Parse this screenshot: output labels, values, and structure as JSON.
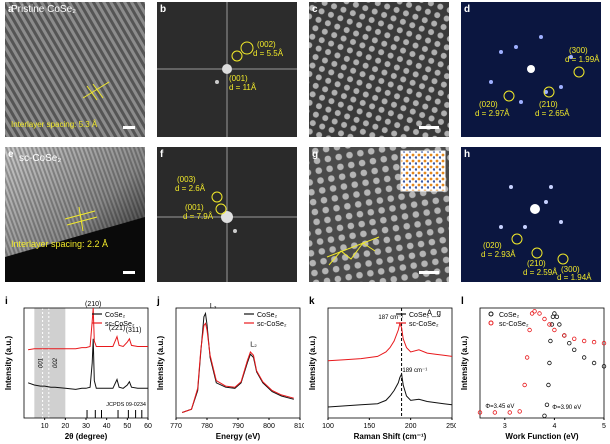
{
  "panels": {
    "a": {
      "label": "a",
      "title": "Pristine CoSe₂",
      "caption": "Interlayer spacing: 5.3 Å"
    },
    "b": {
      "label": "b",
      "spots": [
        {
          "hkl": "(002)",
          "d": "d = 5.5Å"
        },
        {
          "hkl": "(001)",
          "d": "d = 11Å"
        }
      ]
    },
    "c": {
      "label": "c"
    },
    "d": {
      "label": "d",
      "spots": [
        {
          "hkl": "(300)",
          "d": "d = 1.99Å"
        },
        {
          "hkl": "(020)",
          "d": "d = 2.97Å"
        },
        {
          "hkl": "(210)",
          "d": "d = 2.65Å"
        }
      ]
    },
    "e": {
      "label": "e",
      "title": "sc-CoSe₂",
      "caption": "Interlayer spacing: 2.2 Å"
    },
    "f": {
      "label": "f",
      "spots": [
        {
          "hkl": "(003)",
          "d": "d = 2.6Å"
        },
        {
          "hkl": "(001)",
          "d": "d = 7.9Å"
        }
      ]
    },
    "g": {
      "label": "g"
    },
    "h": {
      "label": "h",
      "spots": [
        {
          "hkl": "(020)",
          "d": "d = 2.93Å"
        },
        {
          "hkl": "(210)",
          "d": "d = 2.59Å"
        },
        {
          "hkl": "(300)",
          "d": "d = 1.94Å"
        }
      ]
    },
    "i": {
      "label": "i"
    },
    "j": {
      "label": "j"
    },
    "k": {
      "label": "k"
    },
    "l": {
      "label": "l"
    }
  },
  "colors": {
    "cose2": "#111111",
    "sc": "#e8191c",
    "annot": "#f2ea2a",
    "fft_blue": "#0b1640"
  },
  "chart_data": [
    {
      "panel": "i",
      "type": "line",
      "xlabel": "2θ (degree)",
      "ylabel": "Intensity (a.u.)",
      "xlim": [
        0,
        60
      ],
      "xticks": [
        "10",
        "20",
        "30",
        "40",
        "50",
        "60"
      ],
      "legend": [
        "CoSe₂",
        "sc-CoSe₂"
      ],
      "annotations": [
        "001",
        "002",
        "(210)",
        "(221)",
        "(311)"
      ],
      "reference": "JCPDS 09-0234",
      "series": [
        {
          "name": "CoSe₂",
          "x": [
            2,
            5,
            8,
            10,
            13,
            15,
            20,
            25,
            28,
            30,
            32,
            33,
            33.5,
            34,
            35,
            38,
            40,
            43,
            45,
            46,
            48,
            50,
            51,
            52,
            55,
            58,
            60
          ],
          "y": [
            0.32,
            0.3,
            0.29,
            0.29,
            0.28,
            0.28,
            0.27,
            0.26,
            0.27,
            0.27,
            0.28,
            0.5,
            0.72,
            0.34,
            0.27,
            0.27,
            0.27,
            0.27,
            0.35,
            0.28,
            0.27,
            0.3,
            0.33,
            0.28,
            0.27,
            0.27,
            0.27
          ]
        },
        {
          "name": "sc-CoSe₂",
          "x": [
            2,
            5,
            8,
            10,
            13,
            15,
            20,
            25,
            28,
            30,
            32,
            33,
            33.5,
            34,
            35,
            38,
            40,
            43,
            45,
            46,
            48,
            50,
            51,
            52,
            55,
            58,
            60
          ],
          "y": [
            0.62,
            0.63,
            0.63,
            0.63,
            0.63,
            0.63,
            0.63,
            0.63,
            0.64,
            0.64,
            0.65,
            0.88,
            1.0,
            0.7,
            0.65,
            0.65,
            0.65,
            0.65,
            0.74,
            0.66,
            0.65,
            0.69,
            0.72,
            0.66,
            0.65,
            0.65,
            0.65
          ]
        }
      ]
    },
    {
      "panel": "j",
      "type": "line",
      "xlabel": "Energy (eV)",
      "ylabel": "Intensity (a.u.)",
      "xlim": [
        770,
        810
      ],
      "xticks": [
        "770",
        "780",
        "790",
        "800",
        "810"
      ],
      "legend": [
        "CoSe₂",
        "sc-CoSe₂"
      ],
      "annotations": [
        "L₃",
        "L₂"
      ],
      "series": [
        {
          "name": "CoSe₂",
          "x": [
            772,
            775,
            777,
            778,
            779,
            779.5,
            780,
            781,
            783,
            786,
            789,
            791,
            793,
            794,
            795,
            796,
            798,
            801,
            804,
            808
          ],
          "y": [
            0.05,
            0.08,
            0.25,
            0.6,
            0.92,
            0.95,
            0.85,
            0.55,
            0.32,
            0.28,
            0.27,
            0.32,
            0.5,
            0.58,
            0.55,
            0.42,
            0.32,
            0.24,
            0.2,
            0.17
          ]
        },
        {
          "name": "sc-CoSe₂",
          "x": [
            772,
            775,
            777,
            778,
            779,
            779.5,
            780,
            781,
            783,
            786,
            789,
            791,
            793,
            794,
            795,
            796,
            798,
            801,
            804,
            808
          ],
          "y": [
            0.05,
            0.08,
            0.27,
            0.62,
            0.84,
            0.86,
            0.8,
            0.57,
            0.34,
            0.29,
            0.28,
            0.33,
            0.52,
            0.6,
            0.57,
            0.43,
            0.33,
            0.25,
            0.21,
            0.18
          ]
        }
      ]
    },
    {
      "panel": "k",
      "type": "line",
      "xlabel": "Raman Shift (cm⁻¹)",
      "ylabel": "Intensity (a.u.)",
      "xlim": [
        100,
        250
      ],
      "xticks": [
        "100",
        "150",
        "200",
        "250"
      ],
      "legend": [
        "CoSe₂",
        "sc-CoSe₂"
      ],
      "annotations": [
        "A_g",
        "187 cm⁻¹",
        "189 cm⁻¹"
      ],
      "series": [
        {
          "name": "CoSe₂",
          "x": [
            100,
            120,
            140,
            160,
            170,
            175,
            180,
            185,
            187,
            189,
            191,
            195,
            200,
            210,
            220,
            230,
            240,
            250
          ],
          "y": [
            0.1,
            0.11,
            0.12,
            0.13,
            0.16,
            0.2,
            0.25,
            0.32,
            0.37,
            0.4,
            0.3,
            0.2,
            0.16,
            0.17,
            0.15,
            0.14,
            0.13,
            0.12
          ]
        },
        {
          "name": "sc-CoSe₂",
          "x": [
            100,
            120,
            140,
            160,
            170,
            175,
            180,
            185,
            187,
            189,
            191,
            195,
            200,
            210,
            220,
            230,
            240,
            250
          ],
          "y": [
            0.52,
            0.53,
            0.54,
            0.56,
            0.6,
            0.64,
            0.7,
            0.8,
            0.86,
            0.82,
            0.72,
            0.64,
            0.6,
            0.62,
            0.59,
            0.58,
            0.57,
            0.56
          ]
        }
      ]
    },
    {
      "panel": "l",
      "type": "scatter",
      "xlabel": "Work Function (eV)",
      "ylabel": "Intensity (a.u.)",
      "xlim": [
        2.5,
        5
      ],
      "xticks": [
        "3",
        "4",
        "5"
      ],
      "legend": [
        "CoSe₂",
        "sc-CoSe₂"
      ],
      "annotations": [
        "Φ=3.45 eV",
        "Φ=3.90 eV"
      ],
      "series": [
        {
          "name": "CoSe₂",
          "x": [
            3.8,
            3.85,
            3.88,
            3.9,
            3.92,
            3.95,
            3.97,
            4.0,
            4.05,
            4.1,
            4.2,
            4.3,
            4.4,
            4.6,
            4.8,
            5.0
          ],
          "y": [
            0.02,
            0.12,
            0.3,
            0.5,
            0.7,
            0.85,
            0.92,
            0.95,
            0.92,
            0.85,
            0.75,
            0.68,
            0.62,
            0.55,
            0.5,
            0.47
          ]
        },
        {
          "name": "sc-CoSe₂",
          "x": [
            2.5,
            2.8,
            3.1,
            3.3,
            3.4,
            3.45,
            3.5,
            3.55,
            3.6,
            3.7,
            3.8,
            3.9,
            4.0,
            4.2,
            4.4,
            4.6,
            4.8,
            5.0
          ],
          "y": [
            0.05,
            0.05,
            0.05,
            0.06,
            0.3,
            0.55,
            0.8,
            0.95,
            0.97,
            0.95,
            0.9,
            0.85,
            0.8,
            0.75,
            0.72,
            0.7,
            0.69,
            0.68
          ]
        }
      ]
    }
  ]
}
